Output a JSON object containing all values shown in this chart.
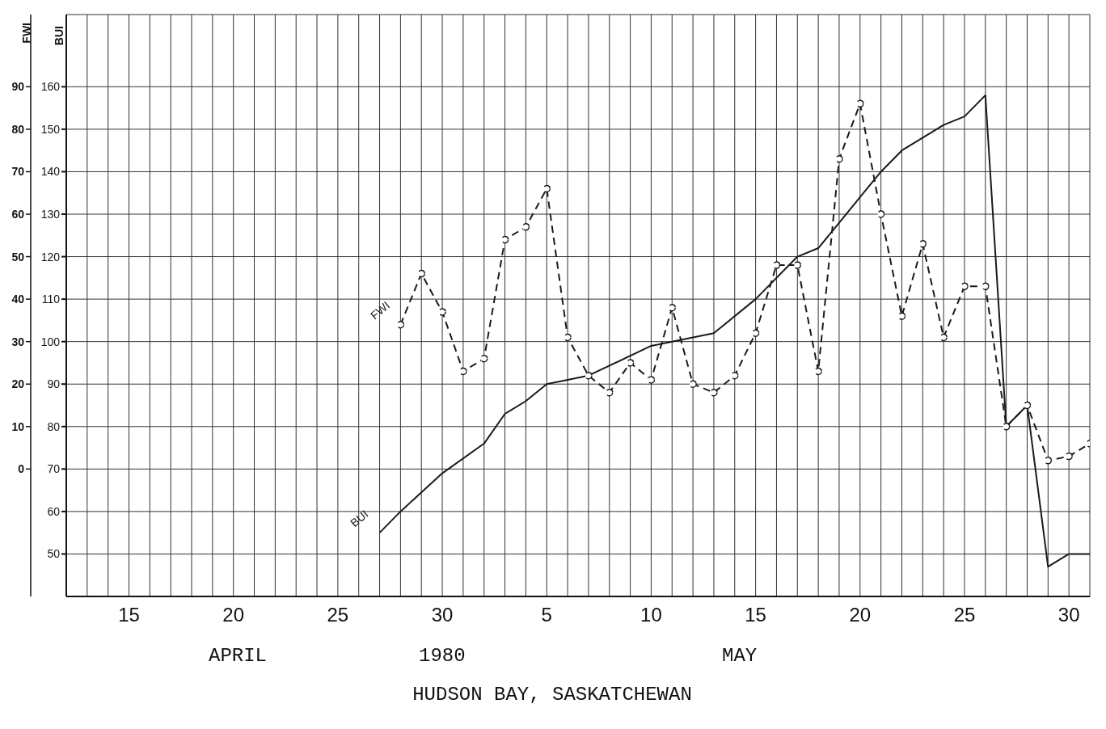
{
  "chart_data": {
    "type": "line",
    "xlabel": "HUDSON BAY, SASKATCHEWAN",
    "ylabel": "BUI",
    "y2label": "FWI",
    "annotations": [
      "APRIL",
      "1980",
      "MAY"
    ],
    "xlim": [
      "1980-04-12",
      "1980-05-31"
    ],
    "xticks": [
      {
        "value": "1980-04-13",
        "label": null
      },
      {
        "value": "1980-04-14",
        "label": null
      },
      {
        "value": "1980-04-15",
        "label": "15"
      },
      {
        "value": "1980-04-16",
        "label": null
      },
      {
        "value": "1980-04-17",
        "label": null
      },
      {
        "value": "1980-04-18",
        "label": null
      },
      {
        "value": "1980-04-19",
        "label": null
      },
      {
        "value": "1980-04-20",
        "label": "20"
      },
      {
        "value": "1980-04-21",
        "label": null
      },
      {
        "value": "1980-04-22",
        "label": null
      },
      {
        "value": "1980-04-23",
        "label": null
      },
      {
        "value": "1980-04-24",
        "label": null
      },
      {
        "value": "1980-04-25",
        "label": "25"
      },
      {
        "value": "1980-04-26",
        "label": null
      },
      {
        "value": "1980-04-27",
        "label": null
      },
      {
        "value": "1980-04-28",
        "label": null
      },
      {
        "value": "1980-04-29",
        "label": null
      },
      {
        "value": "1980-04-30",
        "label": "30"
      },
      {
        "value": "1980-05-01",
        "label": null
      },
      {
        "value": "1980-05-02",
        "label": null
      },
      {
        "value": "1980-05-03",
        "label": null
      },
      {
        "value": "1980-05-04",
        "label": null
      },
      {
        "value": "1980-05-05",
        "label": "5"
      },
      {
        "value": "1980-05-06",
        "label": null
      },
      {
        "value": "1980-05-07",
        "label": null
      },
      {
        "value": "1980-05-08",
        "label": null
      },
      {
        "value": "1980-05-09",
        "label": null
      },
      {
        "value": "1980-05-10",
        "label": "10"
      },
      {
        "value": "1980-05-11",
        "label": null
      },
      {
        "value": "1980-05-12",
        "label": null
      },
      {
        "value": "1980-05-13",
        "label": null
      },
      {
        "value": "1980-05-14",
        "label": null
      },
      {
        "value": "1980-05-15",
        "label": "15"
      },
      {
        "value": "1980-05-16",
        "label": null
      },
      {
        "value": "1980-05-17",
        "label": null
      },
      {
        "value": "1980-05-18",
        "label": null
      },
      {
        "value": "1980-05-19",
        "label": null
      },
      {
        "value": "1980-05-20",
        "label": "20"
      },
      {
        "value": "1980-05-21",
        "label": null
      },
      {
        "value": "1980-05-22",
        "label": null
      },
      {
        "value": "1980-05-23",
        "label": null
      },
      {
        "value": "1980-05-24",
        "label": null
      },
      {
        "value": "1980-05-25",
        "label": "25"
      },
      {
        "value": "1980-05-26",
        "label": null
      },
      {
        "value": "1980-05-27",
        "label": null
      },
      {
        "value": "1980-05-28",
        "label": null
      },
      {
        "value": "1980-05-29",
        "label": null
      },
      {
        "value": "1980-05-30",
        "label": "30"
      }
    ],
    "ylim": [
      40,
      177
    ],
    "yticks": [
      50,
      60,
      70,
      80,
      90,
      100,
      110,
      120,
      130,
      140,
      150,
      160
    ],
    "y2lim": [
      -30,
      107
    ],
    "y2ticks": [
      0,
      10,
      20,
      30,
      40,
      50,
      60,
      70,
      80,
      90
    ],
    "grid": true,
    "legend": false,
    "series": [
      {
        "name": "BUI",
        "color": "#1a1a1a",
        "line_style": "solid",
        "marker": "none",
        "x": [
          "1980-04-27",
          "1980-04-28",
          "1980-04-30",
          "1980-05-02",
          "1980-05-03",
          "1980-05-04",
          "1980-05-05",
          "1980-05-07",
          "1980-05-10",
          "1980-05-11",
          "1980-05-13",
          "1980-05-15",
          "1980-05-17",
          "1980-05-18",
          "1980-05-19",
          "1980-05-20",
          "1980-05-21",
          "1980-05-22",
          "1980-05-23",
          "1980-05-24",
          "1980-05-25",
          "1980-05-26",
          "1980-05-27",
          "1980-05-28",
          "1980-05-29",
          "1980-05-30",
          "1980-05-31"
        ],
        "values": [
          55,
          60,
          69,
          76,
          83,
          86,
          90,
          92,
          99,
          100,
          102,
          110,
          120,
          122,
          128,
          134,
          140,
          145,
          148,
          151,
          153,
          158,
          80,
          85,
          47,
          50,
          50
        ]
      },
      {
        "name": "FWI",
        "color": "#1a1a1a",
        "axis": "y2",
        "line_style": "dashed",
        "marker": "circle",
        "x": [
          "1980-04-28",
          "1980-04-29",
          "1980-04-30",
          "1980-05-01",
          "1980-05-02",
          "1980-05-03",
          "1980-05-04",
          "1980-05-05",
          "1980-05-06",
          "1980-05-07",
          "1980-05-08",
          "1980-05-09",
          "1980-05-10",
          "1980-05-11",
          "1980-05-12",
          "1980-05-13",
          "1980-05-14",
          "1980-05-15",
          "1980-05-16",
          "1980-05-17",
          "1980-05-18",
          "1980-05-19",
          "1980-05-20",
          "1980-05-21",
          "1980-05-22",
          "1980-05-23",
          "1980-05-24",
          "1980-05-25",
          "1980-05-26",
          "1980-05-27",
          "1980-05-28",
          "1980-05-29",
          "1980-05-30",
          "1980-05-31"
        ],
        "values": [
          34,
          46,
          37,
          23,
          26,
          54,
          57,
          66,
          31,
          22,
          18,
          25,
          21,
          38,
          20,
          18,
          22,
          32,
          48,
          48,
          23,
          73,
          86,
          60,
          36,
          53,
          31,
          43,
          43,
          10,
          15,
          2,
          3,
          6
        ]
      }
    ]
  }
}
